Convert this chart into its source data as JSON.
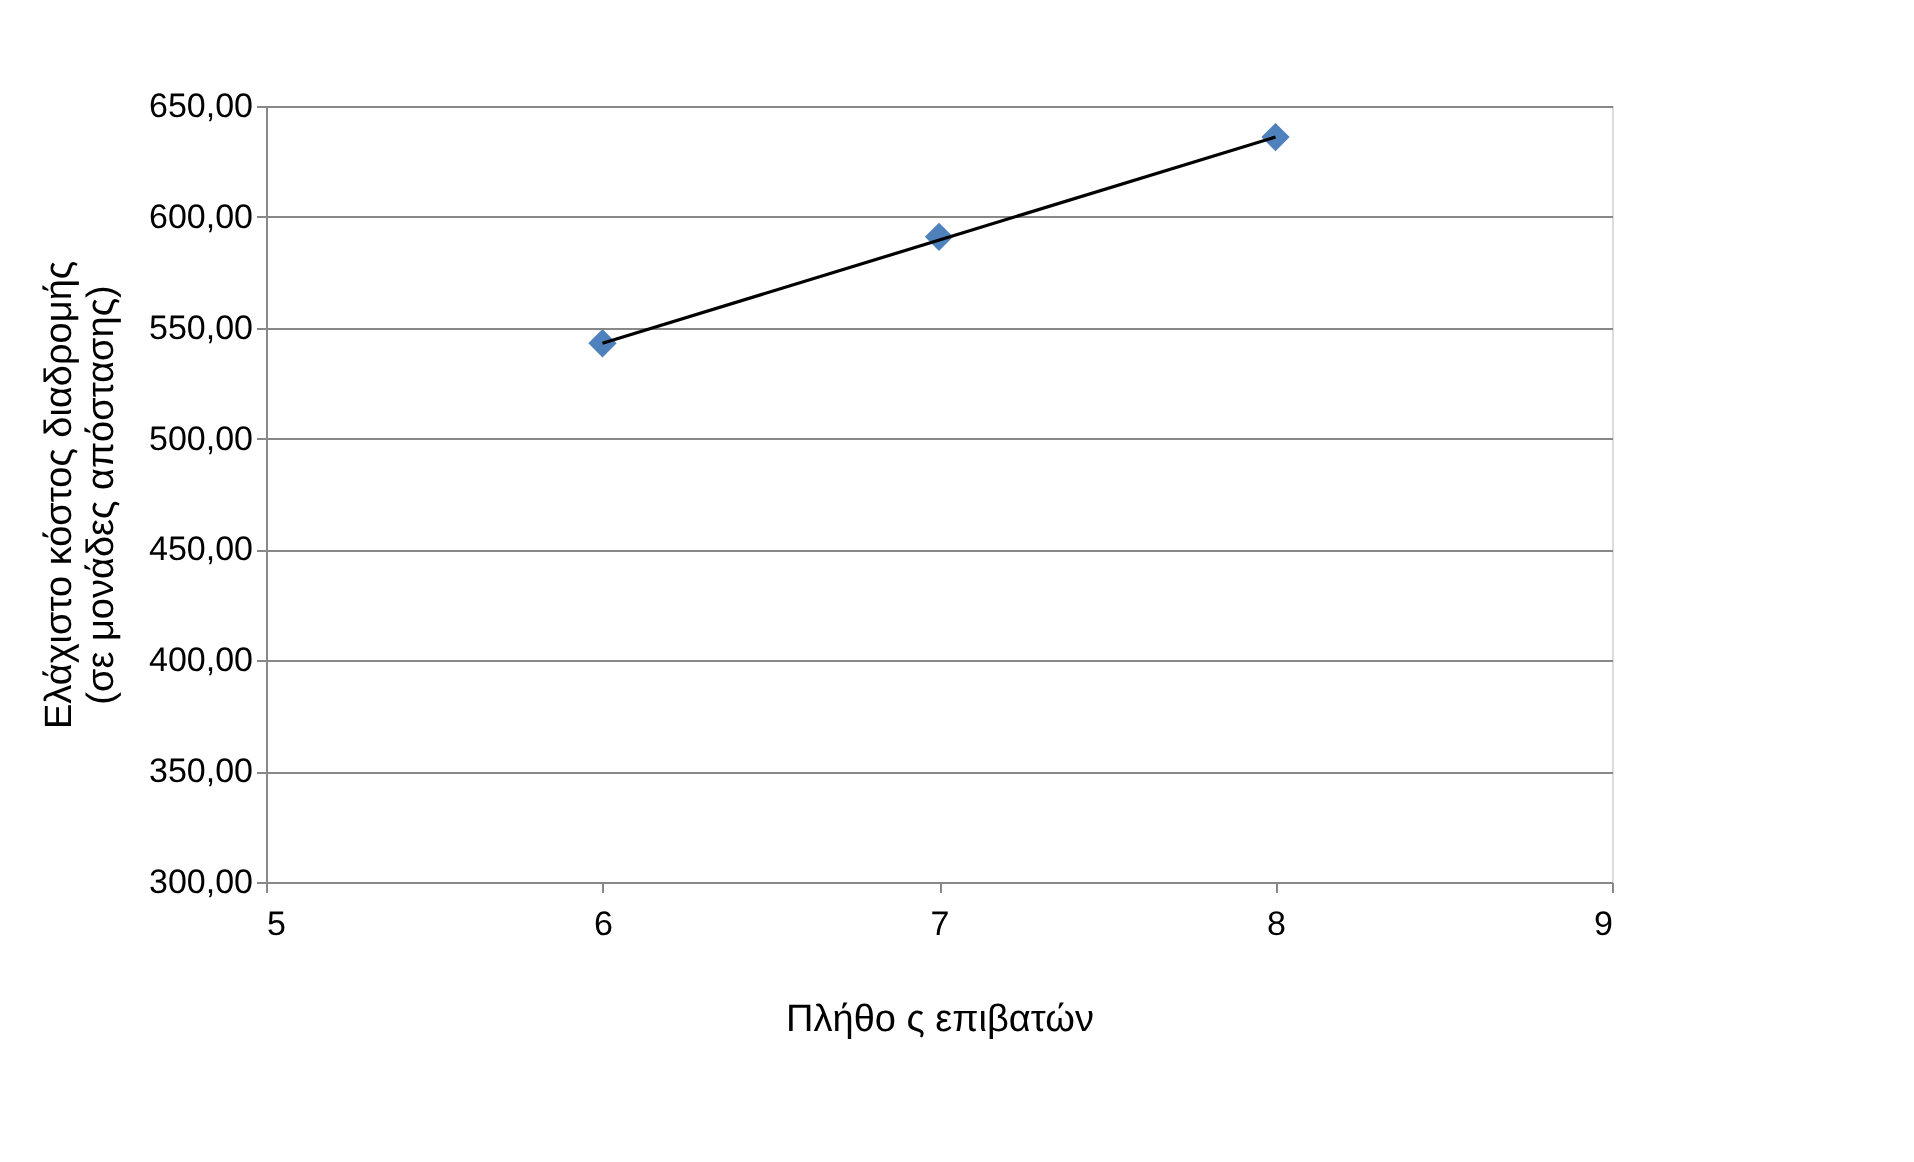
{
  "chart_data": {
    "type": "scatter",
    "xlabel": "Πλήθο ς επιβατών",
    "ylabel": "Ελάχιστο κόστος διαδρομής\n(σε μονάδες απόστασης)",
    "series": [
      {
        "type": "scatter",
        "color": "#4f81bd",
        "marker": "diamond",
        "x": [
          6,
          7,
          8
        ],
        "values": [
          543,
          591,
          636
        ]
      },
      {
        "type": "line",
        "color": "#000000",
        "marker": "none",
        "line_style": "solid",
        "x": [
          6,
          8
        ],
        "values": [
          543,
          636
        ]
      }
    ],
    "xlim": [
      5,
      9
    ],
    "xticks": [
      5,
      6,
      7,
      8,
      9
    ],
    "ylim": [
      300,
      650
    ],
    "yticks": [
      {
        "value": 300,
        "label": "300,00"
      },
      {
        "value": 350,
        "label": "350,00"
      },
      {
        "value": 400,
        "label": "400,00"
      },
      {
        "value": 450,
        "label": "450,00"
      },
      {
        "value": 500,
        "label": "500,00"
      },
      {
        "value": 550,
        "label": "550,00"
      },
      {
        "value": 600,
        "label": "600,00"
      },
      {
        "value": 650,
        "label": "650,00"
      }
    ],
    "grid": "y"
  }
}
